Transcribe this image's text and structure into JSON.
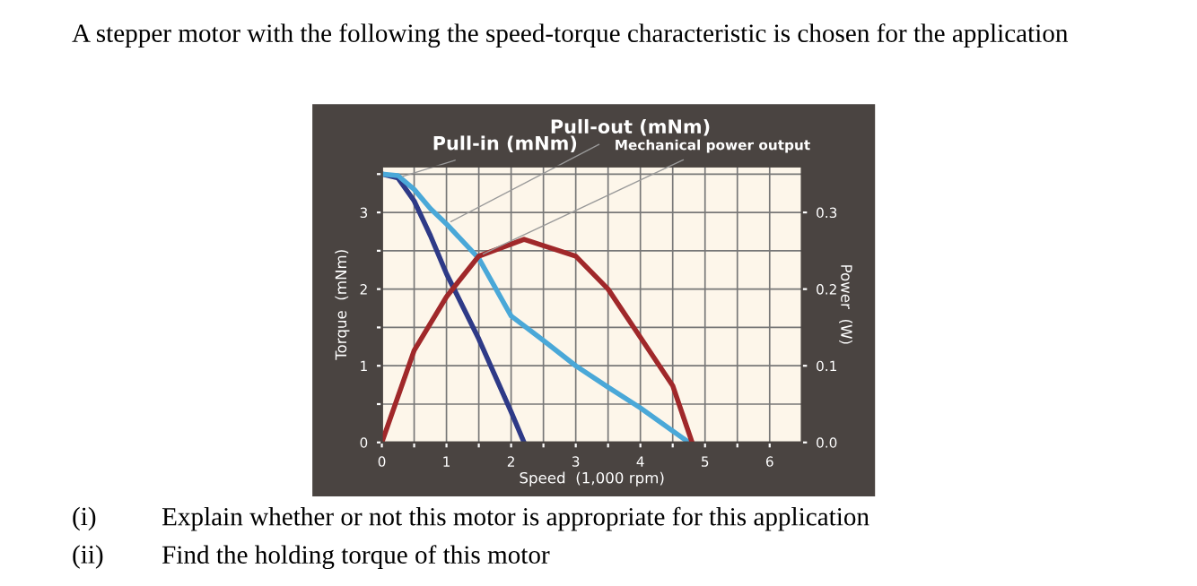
{
  "chart_data": {
    "type": "line",
    "title": "A stepper motor with the following the speed-torque characteristic is chosen for the application",
    "xlabel": "Speed  (1,000 rpm)",
    "ylabel": "Torque  (mNm)",
    "y2label": "Power  (W)",
    "series": [
      {
        "name": "Pull-in (mNm)",
        "color": "#2e3a87",
        "x": [
          0,
          0.25,
          0.5,
          0.75,
          1,
          1.5,
          2,
          2.2
        ],
        "values": [
          3.5,
          3.45,
          3.15,
          2.7,
          2.2,
          1.35,
          0.4,
          0
        ]
      },
      {
        "name": "Pull-out (mNm)",
        "color": "#4aa8d8",
        "x": [
          0,
          0.25,
          0.5,
          0.75,
          1,
          1.5,
          2,
          2.5,
          3,
          3.5,
          4,
          4.5,
          4.75
        ],
        "values": [
          3.5,
          3.48,
          3.3,
          3.05,
          2.85,
          2.4,
          1.65,
          1.33,
          1.0,
          0.72,
          0.45,
          0.15,
          0
        ]
      },
      {
        "name": "Mechanical power output",
        "color": "#a0282a",
        "axis": "y2",
        "x": [
          0,
          0.5,
          1,
          1.5,
          2.2,
          3,
          3.5,
          4,
          4.5,
          4.8
        ],
        "values": [
          0,
          0.12,
          0.19,
          0.243,
          0.265,
          0.243,
          0.2,
          0.137,
          0.074,
          0
        ]
      }
    ],
    "xlim": [
      0,
      6.5
    ],
    "ylim": [
      0,
      3.6
    ],
    "y2lim": [
      0,
      0.36
    ],
    "xticks": [
      0,
      {
        "value": 0.5,
        "label": null
      },
      1,
      {
        "value": 1.5,
        "label": null
      },
      2,
      {
        "value": 2.5,
        "label": null
      },
      3,
      {
        "value": 3.5,
        "label": null
      },
      4,
      {
        "value": 4.5,
        "label": null
      },
      5,
      {
        "value": 5.5,
        "label": null
      },
      6
    ],
    "yticks": [
      0,
      {
        "value": 0.5,
        "label": null
      },
      1,
      {
        "value": 1.5,
        "label": null
      },
      2,
      {
        "value": 2.5,
        "label": null
      },
      3,
      {
        "value": 3.5,
        "label": null
      }
    ],
    "y2ticks": [
      {
        "value": 0,
        "label": "0.0"
      },
      0.1,
      0.2,
      0.3
    ],
    "grid": true,
    "legend": false,
    "annotations": [
      "(i)\tExplain whether or not this motor is appropriate for this application",
      "(ii)\tFind the holding torque of this motor"
    ]
  }
}
